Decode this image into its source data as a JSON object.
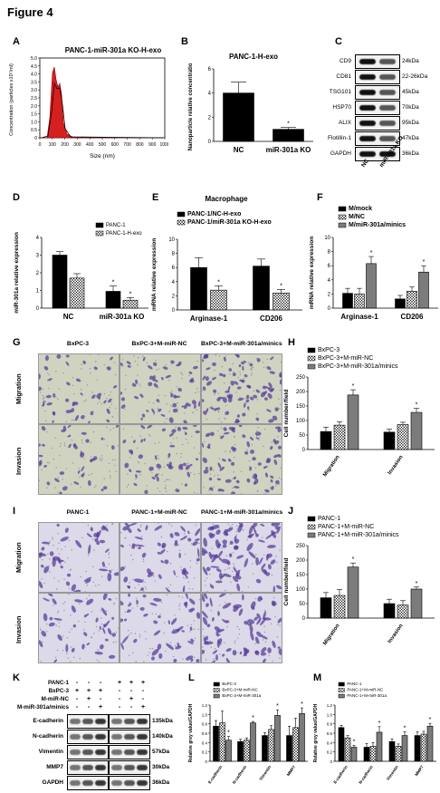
{
  "figure_title": "Figure 4",
  "panels": {
    "A": {
      "letter": "A",
      "title": "PANC-1-miR-301a KO-H-exo",
      "ylabel": "Concentration (particles x10⁷/ml)",
      "xlabel": "Size (nm)",
      "xticks": [
        "0",
        "100",
        "200",
        "300",
        "400",
        "500",
        "600",
        "700",
        "800",
        "900",
        "1000"
      ],
      "yticks": [
        "0",
        "0.5",
        "1.0",
        "1.5",
        "2.0",
        "2.5",
        "3.0",
        "3.5",
        "4.0",
        "4.5",
        "5.0"
      ]
    },
    "B": {
      "letter": "B",
      "title": "PANC-1-H-exo",
      "ylabel": "Nanoparticle relative concentration",
      "yticks": [
        "0",
        "2",
        "4",
        "6"
      ],
      "categories": [
        "NC",
        "miR-301a KO"
      ],
      "star": "*"
    },
    "C": {
      "letter": "C",
      "rows": [
        {
          "name": "CD9",
          "size": "24kDa"
        },
        {
          "name": "CD81",
          "size": "22-26kDa"
        },
        {
          "name": "TSG101",
          "size": "45kDa"
        },
        {
          "name": "HSP70",
          "size": "70kDa"
        },
        {
          "name": "ALIX",
          "size": "95kDa"
        },
        {
          "name": "Flotillin-1",
          "size": "47kDa"
        },
        {
          "name": "GAPDH",
          "size": "36kDa"
        }
      ],
      "lanes": [
        "NC",
        "miR-301a KO"
      ]
    },
    "D": {
      "letter": "D",
      "ylabel": "miR-301a relative expression",
      "yticks": [
        "0",
        "1",
        "2",
        "3",
        "4"
      ],
      "legend": [
        "PANC-1",
        "PANC-1-H-exo"
      ],
      "categories": [
        "NC",
        "miR-301a KO"
      ]
    },
    "E": {
      "letter": "E",
      "title": "Macrophage",
      "ylabel": "mRNA relative expression",
      "yticks": [
        "0",
        "2",
        "4",
        "6",
        "8",
        "10"
      ],
      "legend": [
        "PANC-1/NC-H-exo",
        "PANC-1/miR-301a KO-H-exo"
      ],
      "categories": [
        "Arginase-1",
        "CD206"
      ]
    },
    "F": {
      "letter": "F",
      "ylabel": "mRNA relative expression",
      "yticks": [
        "0",
        "2",
        "4",
        "6",
        "8",
        "10"
      ],
      "legend": [
        "M/mock",
        "M/NC",
        "M/miR-301a/minics"
      ],
      "categories": [
        "Arginase-1",
        "CD206"
      ]
    },
    "G": {
      "letter": "G",
      "cols": [
        "BxPC-3",
        "BxPC-3+M-miR-NC",
        "BxPC-3+M-miR-301a/minics"
      ],
      "rows": [
        "Migration",
        "Invasion"
      ]
    },
    "H": {
      "letter": "H",
      "ylabel": "Cell number/field",
      "yticks": [
        "0",
        "50",
        "100",
        "150",
        "200",
        "250"
      ],
      "legend": [
        "BxPC-3",
        "BxPC-3+M-miR-NC",
        "BxPC-3+M-miR-301a/minics"
      ],
      "categories": [
        "Migration",
        "Invasion"
      ]
    },
    "I": {
      "letter": "I",
      "cols": [
        "PANC-1",
        "PANC-1+M-miR-NC",
        "PANC-1+M-miR-301a/minics"
      ],
      "rows": [
        "Migration",
        "Invasion"
      ]
    },
    "J": {
      "letter": "J",
      "ylabel": "Cell number/field",
      "yticks": [
        "0",
        "50",
        "100",
        "150",
        "200",
        "250"
      ],
      "legend": [
        "PANC-1",
        "PANC-1+M-miR-NC",
        "PANC-1+M-miR-301a/minics"
      ],
      "categories": [
        "Migration",
        "Invasion"
      ]
    },
    "K": {
      "letter": "K",
      "conditions": [
        {
          "name": "PANC-1",
          "signs": [
            "-",
            "-",
            "-",
            "+",
            "+",
            "+"
          ]
        },
        {
          "name": "BxPC-3",
          "signs": [
            "+",
            "+",
            "+",
            "-",
            "-",
            "-"
          ]
        },
        {
          "name": "M-miR-NC",
          "signs": [
            "-",
            "+",
            "-",
            "-",
            "+",
            "-"
          ]
        },
        {
          "name": "M-miR-301a/minics",
          "signs": [
            "-",
            "-",
            "+",
            "-",
            "-",
            "+"
          ]
        }
      ],
      "rows": [
        {
          "name": "E-cadherin",
          "size": "135kDa"
        },
        {
          "name": "N-cadherin",
          "size": "140kDa"
        },
        {
          "name": "Vimentin",
          "size": "57kDa"
        },
        {
          "name": "MMP7",
          "size": "30kDa"
        },
        {
          "name": "GAPDH",
          "size": "36kDa"
        }
      ]
    },
    "L": {
      "letter": "L",
      "ylabel": "Relative grey value/GAPDH",
      "yticks": [
        "0",
        "0.2",
        "0.4",
        "0.6",
        "0.8",
        "1.0",
        "1.2"
      ],
      "legend": [
        "BxPC-3",
        "BxPC-3+M-miR-NC",
        "BxPC-3+M-miR-301a"
      ],
      "categories": [
        "E-cadherin",
        "N-cadherin",
        "Vimentin",
        "MMP7"
      ]
    },
    "M": {
      "letter": "M",
      "ylabel": "Relative grey value/GAPDH",
      "yticks": [
        "0",
        "0.2",
        "0.4",
        "0.6",
        "0.8",
        "1.0",
        "1.2"
      ],
      "legend": [
        "PANC-1",
        "PANC-1+M-miR-NC",
        "PANC-1+M-miR-301a"
      ],
      "categories": [
        "E-cadherin",
        "N-cadherin",
        "Vimentin",
        "MMP7"
      ]
    }
  },
  "chart_data": [
    {
      "id": "B",
      "type": "bar",
      "categories": [
        "NC",
        "miR-301a KO"
      ],
      "values": [
        4.0,
        1.0
      ],
      "errors": [
        0.9,
        0.15
      ],
      "ylim": [
        0,
        6
      ],
      "significance": [
        null,
        "*"
      ]
    },
    {
      "id": "D",
      "type": "bar",
      "categories": [
        "NC",
        "miR-301a KO"
      ],
      "series": [
        {
          "name": "PANC-1",
          "values": [
            3.0,
            0.95
          ],
          "errors": [
            0.2,
            0.3
          ]
        },
        {
          "name": "PANC-1-H-exo",
          "values": [
            1.7,
            0.45
          ],
          "errors": [
            0.25,
            0.15
          ]
        }
      ],
      "ylim": [
        0,
        4
      ]
    },
    {
      "id": "E",
      "type": "bar",
      "categories": [
        "Arginase-1",
        "CD206"
      ],
      "series": [
        {
          "name": "PANC-1/NC-H-exo",
          "values": [
            6.0,
            6.2
          ],
          "errors": [
            1.4,
            1.0
          ]
        },
        {
          "name": "PANC-1/miR-301a KO-H-exo",
          "values": [
            2.8,
            2.4
          ],
          "errors": [
            0.6,
            0.5
          ]
        }
      ],
      "ylim": [
        0,
        10
      ]
    },
    {
      "id": "F",
      "type": "bar",
      "categories": [
        "Arginase-1",
        "CD206"
      ],
      "series": [
        {
          "name": "M/mock",
          "values": [
            2.1,
            1.3
          ],
          "errors": [
            0.7,
            0.5
          ]
        },
        {
          "name": "M/NC",
          "values": [
            2.0,
            2.4
          ],
          "errors": [
            0.8,
            0.6
          ]
        },
        {
          "name": "M/miR-301a/minics",
          "values": [
            6.3,
            5.1
          ],
          "errors": [
            1.0,
            0.9
          ]
        }
      ],
      "ylim": [
        0,
        10
      ]
    },
    {
      "id": "H",
      "type": "bar",
      "categories": [
        "Migration",
        "Invasion"
      ],
      "series": [
        {
          "name": "BxPC-3",
          "values": [
            62,
            60
          ],
          "errors": [
            15,
            10
          ]
        },
        {
          "name": "BxPC-3+M-miR-NC",
          "values": [
            84,
            86
          ],
          "errors": [
            12,
            8
          ]
        },
        {
          "name": "BxPC-3+M-miR-301a/minics",
          "values": [
            188,
            128
          ],
          "errors": [
            18,
            14
          ]
        }
      ],
      "ylim": [
        0,
        250
      ]
    },
    {
      "id": "J",
      "type": "bar",
      "categories": [
        "Migration",
        "Invasion"
      ],
      "series": [
        {
          "name": "PANC-1",
          "values": [
            70,
            50
          ],
          "errors": [
            18,
            15
          ]
        },
        {
          "name": "PANC-1+M-miR-NC",
          "values": [
            78,
            45
          ],
          "errors": [
            20,
            15
          ]
        },
        {
          "name": "PANC-1+M-miR-301a/minics",
          "values": [
            176,
            100
          ],
          "errors": [
            14,
            7
          ]
        }
      ],
      "ylim": [
        0,
        250
      ]
    },
    {
      "id": "L",
      "type": "bar",
      "categories": [
        "E-cadherin",
        "N-cadherin",
        "Vimentin",
        "MMP7"
      ],
      "series": [
        {
          "name": "BxPC-3",
          "values": [
            0.75,
            0.42,
            0.55,
            0.55
          ],
          "errors": [
            0.12,
            0.05,
            0.06,
            0.2
          ]
        },
        {
          "name": "BxPC-3+M-miR-NC",
          "values": [
            0.82,
            0.45,
            0.68,
            0.72
          ],
          "errors": [
            0.25,
            0.05,
            0.08,
            0.2
          ]
        },
        {
          "name": "BxPC-3+M-miR-301a",
          "values": [
            0.45,
            0.82,
            0.98,
            1.02
          ],
          "errors": [
            0.08,
            0.03,
            0.12,
            0.12
          ]
        }
      ],
      "ylim": [
        0,
        1.2
      ]
    },
    {
      "id": "M",
      "type": "bar",
      "categories": [
        "E-cadherin",
        "N-cadherin",
        "Vimentin",
        "MMP7"
      ],
      "series": [
        {
          "name": "PANC-1",
          "values": [
            0.72,
            0.3,
            0.42,
            0.55
          ],
          "errors": [
            0.05,
            0.08,
            0.06,
            0.08
          ]
        },
        {
          "name": "PANC-1+M-miR-NC",
          "values": [
            0.5,
            0.32,
            0.32,
            0.58
          ],
          "errors": [
            0.05,
            0.08,
            0.05,
            0.06
          ]
        },
        {
          "name": "PANC-1+M-miR-301a",
          "values": [
            0.3,
            0.62,
            0.55,
            0.75
          ],
          "errors": [
            0.04,
            0.12,
            0.08,
            0.06
          ]
        }
      ],
      "ylim": [
        0,
        1.2
      ]
    }
  ]
}
